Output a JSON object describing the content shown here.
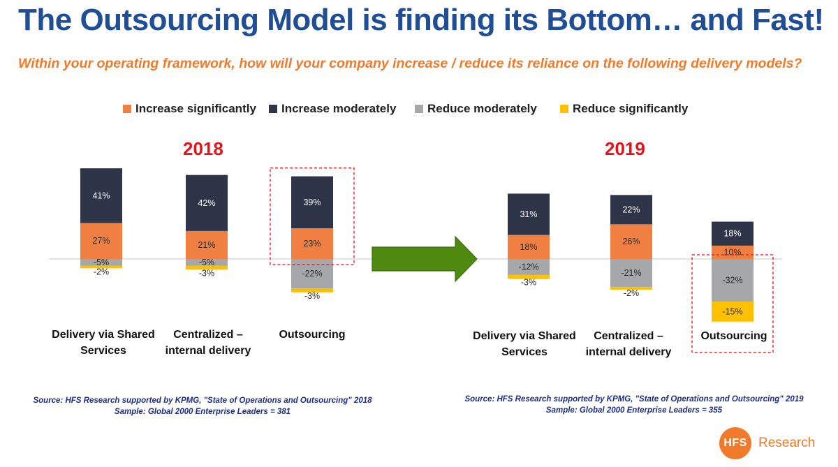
{
  "title": "The Outsourcing Model is finding its Bottom… and Fast!",
  "subtitle": "Within your operating framework, how will your company increase / reduce its reliance on the following delivery models?",
  "colors": {
    "increase_significantly": "#f08041",
    "increase_moderately": "#2e3548",
    "reduce_moderately": "#a5a7aa",
    "reduce_significantly": "#ffc000",
    "highlight_box": "#e3121b",
    "arrow": "#4f8a10"
  },
  "legend": [
    {
      "label": "Increase significantly",
      "color": "#f08041"
    },
    {
      "label": "Increase moderately",
      "color": "#2e3548"
    },
    {
      "label": "Reduce moderately",
      "color": "#a5a7aa"
    },
    {
      "label": "Reduce significantly",
      "color": "#ffc000"
    }
  ],
  "chart_data": [
    {
      "type": "bar",
      "stacked": true,
      "title": "2018",
      "categories": [
        "Delivery via Shared Services",
        "Centralized – internal delivery",
        "Outsourcing"
      ],
      "series": [
        {
          "name": "Increase significantly",
          "values": [
            27,
            21,
            23
          ],
          "labels": [
            "27%",
            "21%",
            "23%"
          ]
        },
        {
          "name": "Increase moderately",
          "values": [
            41,
            42,
            39
          ],
          "labels": [
            "41%",
            "42%",
            "39%"
          ]
        },
        {
          "name": "Reduce moderately",
          "values": [
            -5,
            -5,
            -22
          ],
          "labels": [
            "-5%",
            "-5%",
            "-22%"
          ]
        },
        {
          "name": "Reduce significantly",
          "values": [
            -2,
            -3,
            -3
          ],
          "labels": [
            "-2%",
            "-3%",
            "-3%"
          ]
        }
      ],
      "highlighted_category": "Outsourcing",
      "source": "Source: HFS Research supported by KPMG, \"State of Operations and Outsourcing\" 2018",
      "sample": "Sample: Global 2000 Enterprise Leaders = 381"
    },
    {
      "type": "bar",
      "stacked": true,
      "title": "2019",
      "categories": [
        "Delivery via Shared Services",
        "Centralized – internal delivery",
        "Outsourcing"
      ],
      "series": [
        {
          "name": "Increase significantly",
          "values": [
            18,
            26,
            10
          ],
          "labels": [
            "18%",
            "26%",
            "10%"
          ]
        },
        {
          "name": "Increase moderately",
          "values": [
            31,
            22,
            18
          ],
          "labels": [
            "31%",
            "22%",
            "18%"
          ]
        },
        {
          "name": "Reduce moderately",
          "values": [
            -12,
            -21,
            -32
          ],
          "labels": [
            "-12%",
            "-21%",
            "-32%"
          ]
        },
        {
          "name": "Reduce significantly",
          "values": [
            -3,
            -2,
            -15
          ],
          "labels": [
            "-3%",
            "-2%",
            "-15%"
          ]
        }
      ],
      "highlighted_category": "Outsourcing",
      "source": "Source: HFS Research supported by KPMG, \"State of Operations and Outsourcing\" 2019",
      "sample": "Sample: Global 2000 Enterprise Leaders = 355"
    }
  ],
  "logo": {
    "mark": "HFS",
    "text": "Research"
  }
}
